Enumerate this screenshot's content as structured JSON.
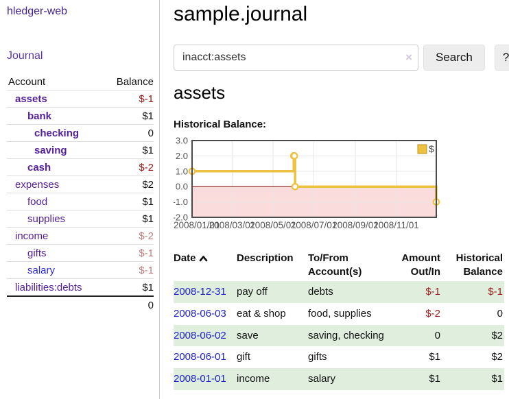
{
  "brand": "hledger-web",
  "nav": {
    "journal_label": "Journal"
  },
  "sidebar": {
    "header": {
      "account": "Account",
      "balance": "Balance"
    },
    "accounts": [
      {
        "name": "assets",
        "indent": 1,
        "bold": true,
        "balance": "$-1",
        "negative": "strong"
      },
      {
        "name": "bank",
        "indent": 2,
        "bold": true,
        "balance": "$1",
        "negative": "none"
      },
      {
        "name": "checking",
        "indent": 3,
        "bold": true,
        "balance": "0",
        "negative": "none"
      },
      {
        "name": "saving",
        "indent": 3,
        "bold": true,
        "balance": "$1",
        "negative": "none"
      },
      {
        "name": "cash",
        "indent": 2,
        "bold": true,
        "balance": "$-2",
        "negative": "strong"
      },
      {
        "name": "expenses",
        "indent": 1,
        "bold": false,
        "balance": "$2",
        "negative": "none"
      },
      {
        "name": "food",
        "indent": 2,
        "bold": false,
        "balance": "$1",
        "negative": "none"
      },
      {
        "name": "supplies",
        "indent": 2,
        "bold": false,
        "balance": "$1",
        "negative": "none"
      },
      {
        "name": "income",
        "indent": 1,
        "bold": false,
        "balance": "$-2",
        "negative": "soft"
      },
      {
        "name": "gifts",
        "indent": 2,
        "bold": false,
        "balance": "$-1",
        "negative": "soft"
      },
      {
        "name": "salary",
        "indent": 2,
        "bold": false,
        "balance": "$-1",
        "negative": "soft",
        "link_color": "#2a2ad4"
      },
      {
        "name": "liabilities:debts",
        "indent": 1,
        "bold": false,
        "balance": "$1",
        "negative": "none"
      }
    ],
    "total": "0"
  },
  "header": {
    "title": "sample.journal"
  },
  "search": {
    "value": "inacct:assets",
    "clear_icon": "×",
    "button_label": "Search",
    "help_label": "?"
  },
  "account_page": {
    "heading": "assets",
    "chart_label": "Historical Balance:"
  },
  "chart_data": {
    "type": "line",
    "title": "Historical Balance",
    "step": true,
    "series": [
      {
        "name": "$",
        "color": "#edc240",
        "points": [
          [
            "2008-01-01",
            1
          ],
          [
            "2008-06-01",
            2
          ],
          [
            "2008-06-02",
            2
          ],
          [
            "2008-06-03",
            0
          ],
          [
            "2008-12-31",
            -1
          ]
        ]
      }
    ],
    "x_range": [
      "2008-01-01",
      "2008-12-31"
    ],
    "x_ticks": [
      "2008/01/01",
      "2008/03/01",
      "2008/05/01",
      "2008/07/01",
      "2008/09/01",
      "2008/11/01"
    ],
    "y_ticks": [
      3.0,
      2.0,
      1.0,
      0.0,
      -1.0,
      -2.0
    ],
    "ylim": [
      -2,
      3
    ],
    "legend": {
      "label": "$",
      "position": "top-right",
      "swatch_color": "#edc240"
    },
    "grid": true,
    "colors": {
      "negative_fill": "#fbdcdc",
      "zero_line": "#8b1a1a",
      "border": "#4a4a4a",
      "gridline": "#e6e6e6",
      "axis_text": "#545454"
    }
  },
  "transactions": {
    "headers": {
      "date": "Date",
      "description": "Description",
      "tofrom": "To/From Account(s)",
      "amount": "Amount Out/In",
      "balance": "Historical Balance"
    },
    "rows": [
      {
        "date": "2008-12-31",
        "description": "pay off",
        "accounts": "debts",
        "amount": "$-1",
        "balance": "$-1",
        "amount_neg": true,
        "balance_neg": true,
        "shaded": true
      },
      {
        "date": "2008-06-03",
        "description": "eat & shop",
        "accounts": "food, supplies",
        "amount": "$-2",
        "balance": "0",
        "amount_neg": true,
        "balance_neg": false,
        "shaded": false
      },
      {
        "date": "2008-06-02",
        "description": "save",
        "accounts": "saving, checking",
        "amount": "0",
        "balance": "$2",
        "amount_neg": false,
        "balance_neg": false,
        "shaded": true
      },
      {
        "date": "2008-06-01",
        "description": "gift",
        "accounts": "gifts",
        "amount": "$1",
        "balance": "$2",
        "amount_neg": false,
        "balance_neg": false,
        "shaded": false
      },
      {
        "date": "2008-01-01",
        "description": "income",
        "accounts": "salary",
        "amount": "$1",
        "balance": "$1",
        "amount_neg": false,
        "balance_neg": false,
        "shaded": true
      }
    ]
  }
}
